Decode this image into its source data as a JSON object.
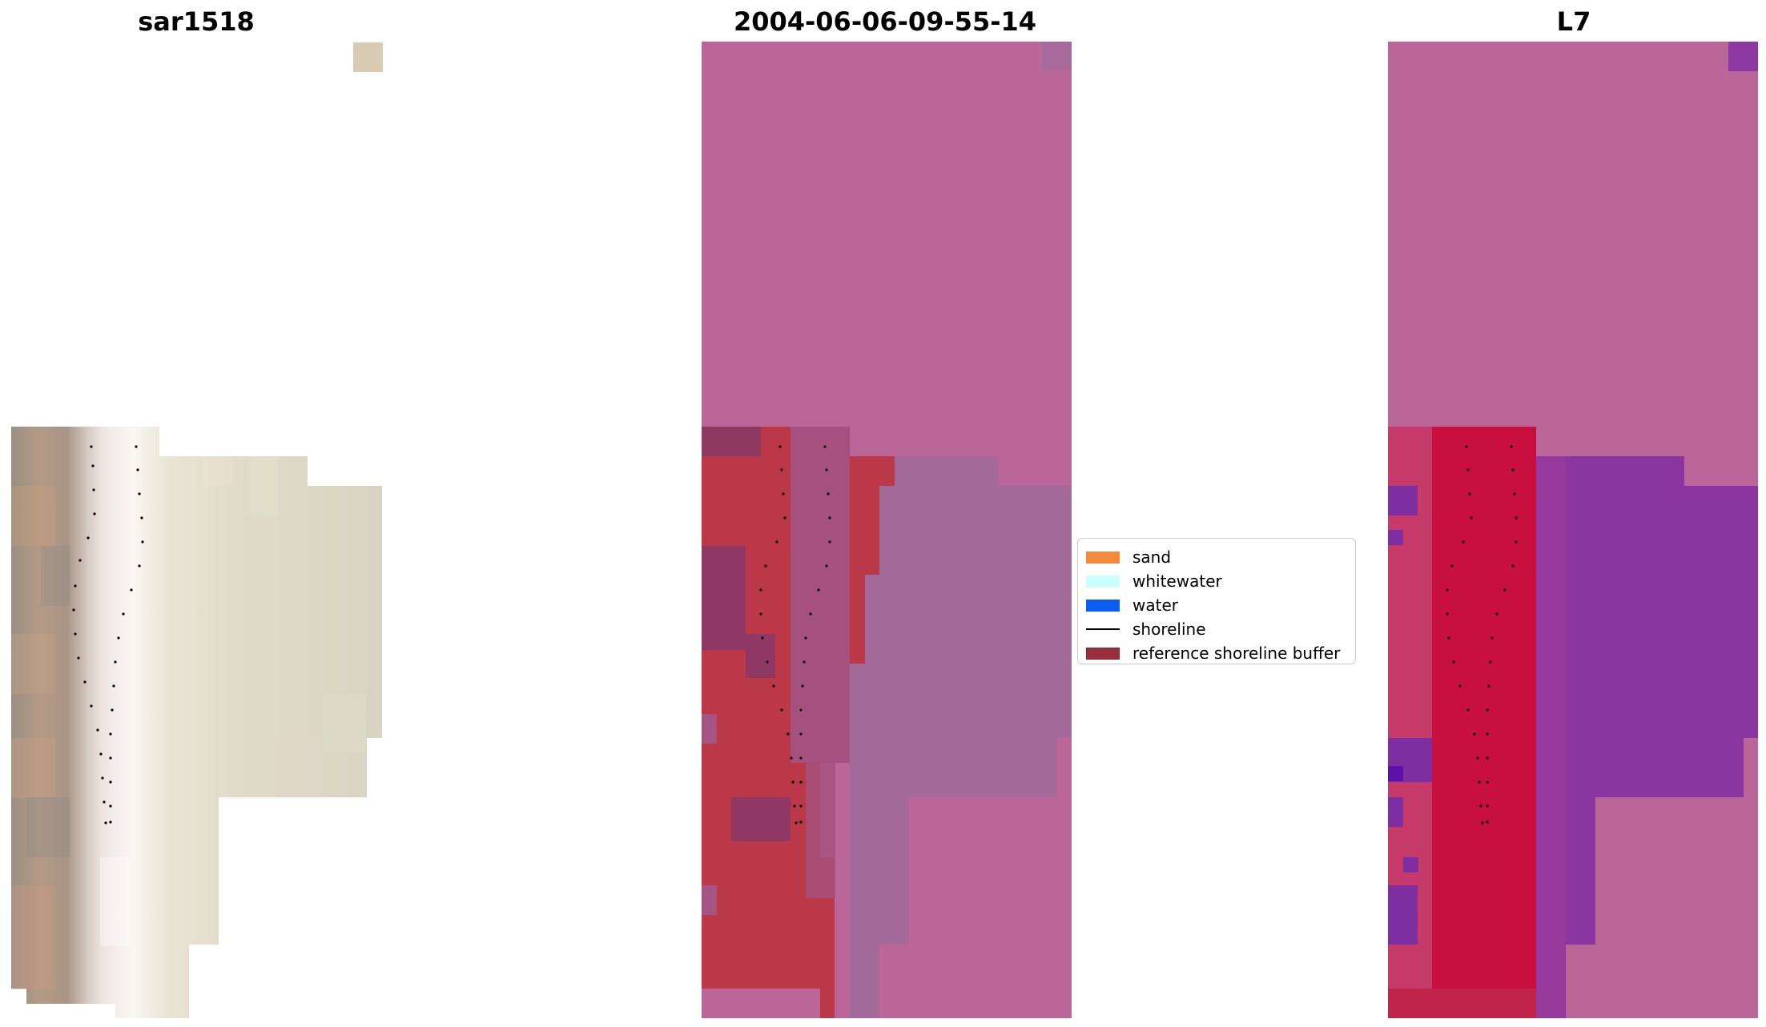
{
  "panels": {
    "rgb": {
      "title": "sar1518"
    },
    "classified": {
      "title": "2004-06-06-09-55-14"
    },
    "index": {
      "title": "L7"
    }
  },
  "legend": {
    "items": [
      {
        "label": "sand",
        "color": "#f58a3c",
        "kind": "patch"
      },
      {
        "label": "whitewater",
        "color": "#ccffff",
        "kind": "patch"
      },
      {
        "label": "water",
        "color": "#0b5cf5",
        "kind": "patch"
      },
      {
        "label": "shoreline",
        "color": "#000000",
        "kind": "line"
      },
      {
        "label": "reference shoreline buffer",
        "color": "#9b2e3c",
        "kind": "patch"
      }
    ]
  }
}
